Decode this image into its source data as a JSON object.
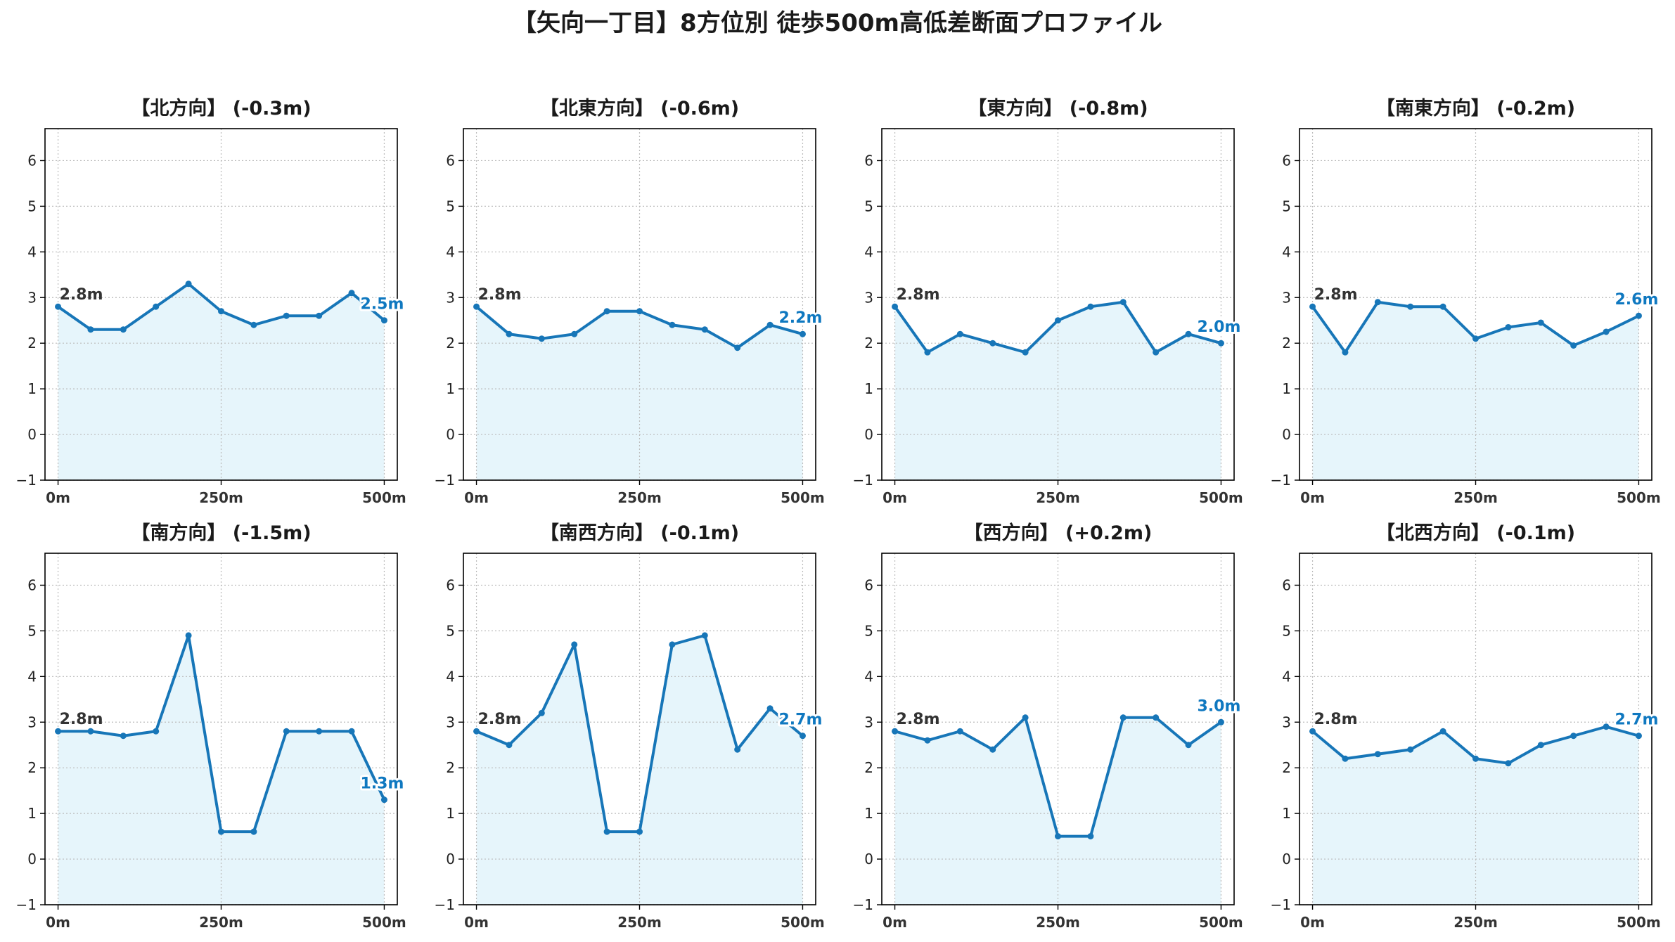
{
  "title": "【矢向一丁目】8方位別 徒歩500m高低差断面プロファイル",
  "colors": {
    "line": "#1776b8",
    "fill": "#e6f5fb",
    "end_label": "#0f78c0",
    "start_label": "#333333",
    "grid": "#bbbbbb"
  },
  "chart_data": [
    {
      "type": "area",
      "title": "【北方向】 (-0.3m)",
      "x": [
        0,
        50,
        100,
        150,
        200,
        250,
        300,
        350,
        400,
        450,
        500
      ],
      "values": [
        2.8,
        2.3,
        2.3,
        2.8,
        3.3,
        2.7,
        2.4,
        2.6,
        2.6,
        3.1,
        2.5
      ],
      "start_label": "2.8m",
      "end_label": "2.5m",
      "ylim": [
        -1,
        6.7
      ],
      "xlim": [
        -20,
        520
      ],
      "yticks": [
        "−1",
        "0",
        "1",
        "2",
        "3",
        "4",
        "5",
        "6"
      ],
      "xticks": [
        "0m",
        "250m",
        "500m"
      ],
      "grid": true
    },
    {
      "type": "area",
      "title": "【北東方向】 (-0.6m)",
      "x": [
        0,
        50,
        100,
        150,
        200,
        250,
        300,
        350,
        400,
        450,
        500
      ],
      "values": [
        2.8,
        2.2,
        2.1,
        2.2,
        2.7,
        2.7,
        2.4,
        2.3,
        1.9,
        2.4,
        2.2
      ],
      "start_label": "2.8m",
      "end_label": "2.2m",
      "ylim": [
        -1,
        6.7
      ],
      "xlim": [
        -20,
        520
      ],
      "yticks": [
        "−1",
        "0",
        "1",
        "2",
        "3",
        "4",
        "5",
        "6"
      ],
      "xticks": [
        "0m",
        "250m",
        "500m"
      ],
      "grid": true
    },
    {
      "type": "area",
      "title": "【東方向】 (-0.8m)",
      "x": [
        0,
        50,
        100,
        150,
        200,
        250,
        300,
        350,
        400,
        450,
        500
      ],
      "values": [
        2.8,
        1.8,
        2.2,
        2.0,
        1.8,
        2.5,
        2.8,
        2.9,
        1.8,
        2.2,
        2.0
      ],
      "start_label": "2.8m",
      "end_label": "2.0m",
      "ylim": [
        -1,
        6.7
      ],
      "xlim": [
        -20,
        520
      ],
      "yticks": [
        "−1",
        "0",
        "1",
        "2",
        "3",
        "4",
        "5",
        "6"
      ],
      "xticks": [
        "0m",
        "250m",
        "500m"
      ],
      "grid": true
    },
    {
      "type": "area",
      "title": "【南東方向】 (-0.2m)",
      "x": [
        0,
        50,
        100,
        150,
        200,
        250,
        300,
        350,
        400,
        450,
        500
      ],
      "values": [
        2.8,
        1.8,
        2.9,
        2.8,
        2.8,
        2.1,
        2.35,
        2.45,
        1.95,
        2.25,
        2.6
      ],
      "start_label": "2.8m",
      "end_label": "2.6m",
      "ylim": [
        -1,
        6.7
      ],
      "xlim": [
        -20,
        520
      ],
      "yticks": [
        "−1",
        "0",
        "1",
        "2",
        "3",
        "4",
        "5",
        "6"
      ],
      "xticks": [
        "0m",
        "250m",
        "500m"
      ],
      "grid": true
    },
    {
      "type": "area",
      "title": "【南方向】 (-1.5m)",
      "x": [
        0,
        50,
        100,
        150,
        200,
        250,
        300,
        350,
        400,
        450,
        500
      ],
      "values": [
        2.8,
        2.8,
        2.7,
        2.8,
        4.9,
        0.6,
        0.6,
        2.8,
        2.8,
        2.8,
        1.3
      ],
      "start_label": "2.8m",
      "end_label": "1.3m",
      "ylim": [
        -1,
        6.7
      ],
      "xlim": [
        -20,
        520
      ],
      "yticks": [
        "−1",
        "0",
        "1",
        "2",
        "3",
        "4",
        "5",
        "6"
      ],
      "xticks": [
        "0m",
        "250m",
        "500m"
      ],
      "grid": true
    },
    {
      "type": "area",
      "title": "【南西方向】 (-0.1m)",
      "x": [
        0,
        50,
        100,
        150,
        200,
        250,
        300,
        350,
        400,
        450,
        500
      ],
      "values": [
        2.8,
        2.5,
        3.2,
        4.7,
        0.6,
        0.6,
        4.7,
        4.9,
        2.4,
        3.3,
        2.7
      ],
      "start_label": "2.8m",
      "end_label": "2.7m",
      "ylim": [
        -1,
        6.7
      ],
      "xlim": [
        -20,
        520
      ],
      "yticks": [
        "−1",
        "0",
        "1",
        "2",
        "3",
        "4",
        "5",
        "6"
      ],
      "xticks": [
        "0m",
        "250m",
        "500m"
      ],
      "grid": true
    },
    {
      "type": "area",
      "title": "【西方向】 (+0.2m)",
      "x": [
        0,
        50,
        100,
        150,
        200,
        250,
        300,
        350,
        400,
        450,
        500
      ],
      "values": [
        2.8,
        2.6,
        2.8,
        2.4,
        3.1,
        0.5,
        0.5,
        3.1,
        3.1,
        2.5,
        3.0
      ],
      "start_label": "2.8m",
      "end_label": "3.0m",
      "ylim": [
        -1,
        6.7
      ],
      "xlim": [
        -20,
        520
      ],
      "yticks": [
        "−1",
        "0",
        "1",
        "2",
        "3",
        "4",
        "5",
        "6"
      ],
      "xticks": [
        "0m",
        "250m",
        "500m"
      ],
      "grid": true
    },
    {
      "type": "area",
      "title": "【北西方向】 (-0.1m)",
      "x": [
        0,
        50,
        100,
        150,
        200,
        250,
        300,
        350,
        400,
        450,
        500
      ],
      "values": [
        2.8,
        2.2,
        2.3,
        2.4,
        2.8,
        2.2,
        2.1,
        2.5,
        2.7,
        2.9,
        2.7
      ],
      "start_label": "2.8m",
      "end_label": "2.7m",
      "ylim": [
        -1,
        6.7
      ],
      "xlim": [
        -20,
        520
      ],
      "yticks": [
        "−1",
        "0",
        "1",
        "2",
        "3",
        "4",
        "5",
        "6"
      ],
      "xticks": [
        "0m",
        "250m",
        "500m"
      ],
      "grid": true
    }
  ]
}
